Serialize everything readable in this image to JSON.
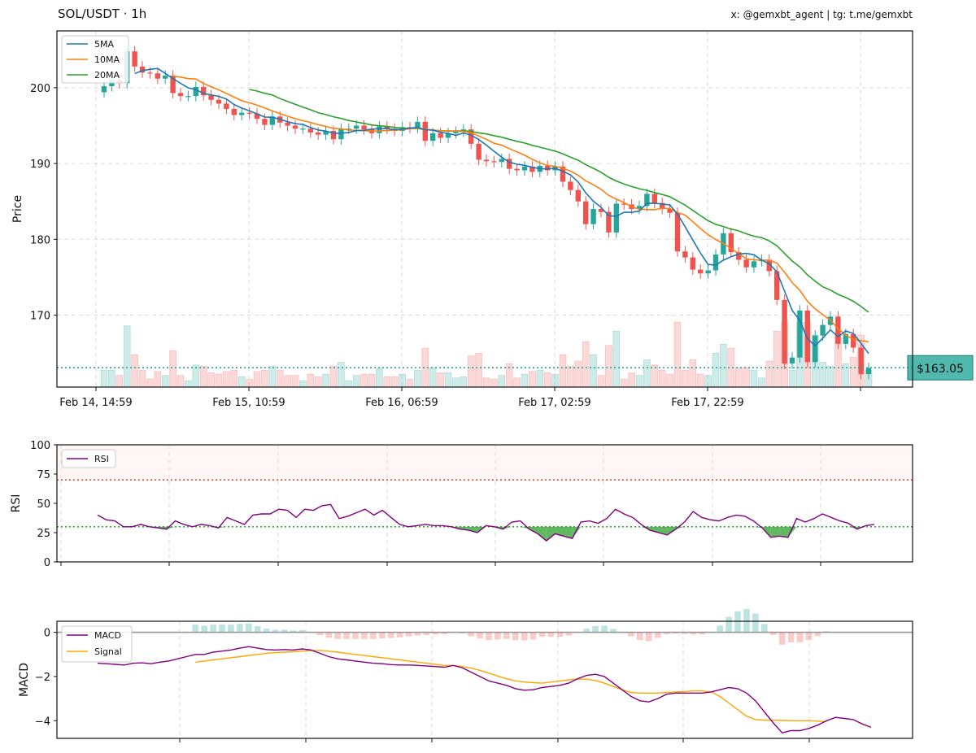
{
  "header": {
    "title": "SOL/USDT · 1h",
    "credit": "x: @gemxbt_agent | tg: t.me/gemxbt"
  },
  "colors": {
    "up": "#26a69a",
    "down": "#ef5350",
    "ma5": "#1f77b4",
    "ma10": "#ff7f0e",
    "ma20": "#2ca02c",
    "rsi": "#800080",
    "macd": "#800080",
    "signal": "#ffa500",
    "grid": "#d9d9d9",
    "price_line": "#26a69a"
  },
  "chart_data": [
    {
      "type": "candlestick",
      "ylabel": "Price",
      "ylim": [
        160.5,
        207.5
      ],
      "yticks": [
        170,
        180,
        190,
        200
      ],
      "xtick_labels": [
        "Feb 14, 14:59",
        "Feb 15, 10:59",
        "Feb 16, 06:59",
        "Feb 17, 02:59",
        "Feb 17, 22:59"
      ],
      "xtick_bars": [
        0,
        20,
        40,
        60,
        80
      ],
      "legend": {
        "placement": "top-left",
        "entries": [
          "5MA",
          "10MA",
          "20MA"
        ]
      },
      "current_price_label": "$163.05",
      "current_price": 163.05,
      "close": [
        200.2,
        201.0,
        200.6,
        204.8,
        202.8,
        202.0,
        201.9,
        201.2,
        201.6,
        199.3,
        198.9,
        198.9,
        200.1,
        199.0,
        198.4,
        197.9,
        197.2,
        196.4,
        196.7,
        196.6,
        195.9,
        195.1,
        196.2,
        195.4,
        195.0,
        194.6,
        194.6,
        194.1,
        193.8,
        194.3,
        193.2,
        194.6,
        194.6,
        195.0,
        194.5,
        194.0,
        194.9,
        194.6,
        194.3,
        194.8,
        194.7,
        195.5,
        193.0,
        194.0,
        193.4,
        194.0,
        194.2,
        194.5,
        192.6,
        190.5,
        190.3,
        190.2,
        190.6,
        189.3,
        189.1,
        189.6,
        188.9,
        189.7,
        189.1,
        189.6,
        187.6,
        186.5,
        185.0,
        182.0,
        184.0,
        183.6,
        180.9,
        184.7,
        184.6,
        184.0,
        184.4,
        186.0,
        184.8,
        184.0,
        183.5,
        178.4,
        177.6,
        176.0,
        175.5,
        175.9,
        178.0,
        180.8,
        178.3,
        177.3,
        176.3,
        177.1,
        177.3,
        175.8,
        172.0,
        163.6,
        164.4,
        170.6,
        163.8,
        167.3,
        168.7,
        169.8,
        166.2,
        167.5,
        165.7,
        162.2,
        163.0
      ]
    },
    {
      "type": "line",
      "ylabel": "RSI",
      "ylim": [
        0,
        100
      ],
      "yticks": [
        0,
        25,
        50,
        75,
        100
      ],
      "overbought": 70,
      "oversold": 30,
      "legend": {
        "placement": "top-left",
        "entries": [
          "RSI"
        ]
      },
      "series": [
        {
          "name": "RSI",
          "values": [
            40,
            36,
            35,
            30,
            30,
            32,
            30,
            29,
            28,
            35,
            32,
            30,
            32,
            31,
            29,
            38,
            35,
            32,
            40,
            41,
            41,
            45,
            44,
            38,
            45,
            44,
            48,
            49,
            37,
            39,
            42,
            45,
            40,
            44,
            38,
            32,
            30,
            31,
            32,
            31,
            31,
            30,
            28,
            27,
            25,
            31,
            30,
            28,
            34,
            35,
            28,
            24,
            18,
            24,
            22,
            20,
            34,
            35,
            33,
            37,
            45,
            41,
            38,
            32,
            27,
            25,
            23,
            28,
            34,
            43,
            38,
            36,
            35,
            38,
            40,
            39,
            35,
            29,
            21,
            22,
            21,
            37,
            34,
            37,
            41,
            38,
            35,
            33,
            28,
            31,
            32
          ]
        }
      ]
    },
    {
      "type": "line",
      "ylabel": "MACD",
      "ylim": [
        -4.8,
        0.5
      ],
      "yticks": [
        0,
        -2,
        -4
      ],
      "legend": {
        "placement": "top-left",
        "entries": [
          "MACD",
          "Signal"
        ]
      },
      "series": [
        {
          "name": "MACD",
          "values": [
            -1.4,
            -1.42,
            -1.45,
            -1.48,
            -1.4,
            -1.38,
            -1.42,
            -1.35,
            -1.3,
            -1.2,
            -1.1,
            -1.0,
            -1.0,
            -0.9,
            -0.85,
            -0.8,
            -0.72,
            -0.65,
            -0.72,
            -0.78,
            -0.8,
            -0.78,
            -0.8,
            -0.75,
            -0.8,
            -0.95,
            -1.1,
            -1.2,
            -1.25,
            -1.3,
            -1.35,
            -1.4,
            -1.42,
            -1.46,
            -1.48,
            -1.48,
            -1.5,
            -1.52,
            -1.55,
            -1.58,
            -1.5,
            -1.6,
            -1.8,
            -2.0,
            -2.2,
            -2.3,
            -2.4,
            -2.55,
            -2.62,
            -2.6,
            -2.5,
            -2.45,
            -2.4,
            -2.3,
            -2.1,
            -1.95,
            -1.9,
            -2.0,
            -2.3,
            -2.6,
            -2.9,
            -3.1,
            -3.15,
            -3.0,
            -2.8,
            -2.75,
            -2.75,
            -2.75,
            -2.75,
            -2.7,
            -2.6,
            -2.5,
            -2.55,
            -2.75,
            -3.1,
            -3.6,
            -4.1,
            -4.55,
            -4.45,
            -4.45,
            -4.35,
            -4.2,
            -4.0,
            -3.85,
            -3.9,
            -3.95,
            -4.15,
            -4.3
          ]
        },
        {
          "name": "Signal",
          "values": [
            null,
            null,
            null,
            null,
            null,
            null,
            null,
            null,
            null,
            null,
            null,
            -1.35,
            -1.3,
            -1.25,
            -1.2,
            -1.15,
            -1.1,
            -1.05,
            -1.0,
            -0.95,
            -0.92,
            -0.9,
            -0.88,
            -0.85,
            -0.82,
            -0.82,
            -0.85,
            -0.9,
            -0.95,
            -1.0,
            -1.05,
            -1.1,
            -1.15,
            -1.2,
            -1.25,
            -1.3,
            -1.35,
            -1.4,
            -1.45,
            -1.5,
            -1.5,
            -1.55,
            -1.62,
            -1.72,
            -1.85,
            -1.98,
            -2.1,
            -2.2,
            -2.25,
            -2.28,
            -2.3,
            -2.25,
            -2.2,
            -2.15,
            -2.12,
            -2.12,
            -2.18,
            -2.3,
            -2.45,
            -2.6,
            -2.72,
            -2.75,
            -2.75,
            -2.75,
            -2.72,
            -2.7,
            -2.68,
            -2.65,
            -2.65,
            -2.7,
            -2.9,
            -3.2,
            -3.5,
            -3.8,
            -3.95,
            -3.98,
            -3.98,
            -3.99,
            -4.0,
            -4.0,
            -4.0,
            -4.02,
            -4.05
          ]
        }
      ]
    }
  ]
}
